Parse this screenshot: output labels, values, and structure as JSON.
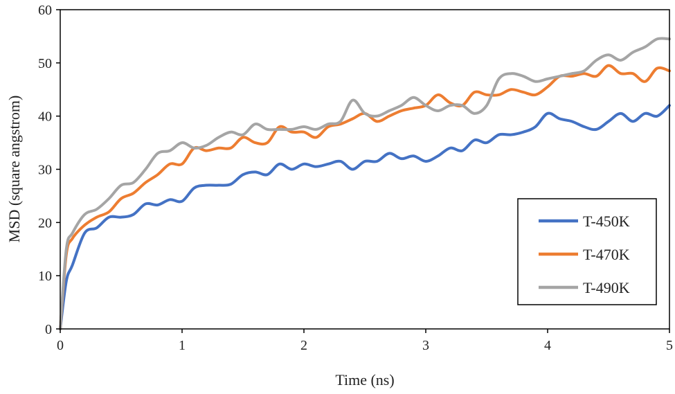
{
  "chart_data": {
    "type": "line",
    "title": "",
    "xlabel": "Time (ns)",
    "ylabel": "MSD (square angstrom)",
    "xlim": [
      0,
      5
    ],
    "ylim": [
      0,
      60
    ],
    "xticks": [
      0,
      1,
      2,
      3,
      4,
      5
    ],
    "yticks": [
      0,
      10,
      20,
      30,
      40,
      50,
      60
    ],
    "grid": false,
    "legend": "bottom-right",
    "x": [
      0,
      0.05,
      0.1,
      0.2,
      0.3,
      0.4,
      0.5,
      0.6,
      0.7,
      0.8,
      0.9,
      1.0,
      1.1,
      1.2,
      1.3,
      1.4,
      1.5,
      1.6,
      1.7,
      1.8,
      1.9,
      2.0,
      2.1,
      2.2,
      2.3,
      2.4,
      2.5,
      2.6,
      2.7,
      2.8,
      2.9,
      3.0,
      3.1,
      3.2,
      3.3,
      3.4,
      3.5,
      3.6,
      3.7,
      3.8,
      3.9,
      4.0,
      4.1,
      4.2,
      4.3,
      4.4,
      4.5,
      4.6,
      4.7,
      4.8,
      4.9,
      5.0
    ],
    "series": [
      {
        "name": "T-450K",
        "color": "#4472C4",
        "values": [
          0,
          9,
          12,
          18,
          19,
          21,
          21,
          21.5,
          23.5,
          23.3,
          24.3,
          24,
          26.5,
          27,
          27,
          27.2,
          29,
          29.5,
          29,
          31,
          30,
          31,
          30.5,
          31,
          31.5,
          30,
          31.5,
          31.5,
          33,
          32,
          32.5,
          31.5,
          32.5,
          34,
          33.5,
          35.5,
          35,
          36.5,
          36.5,
          37,
          38,
          40.5,
          39.5,
          39,
          38,
          37.5,
          39,
          40.5,
          39,
          40.5,
          40,
          42
        ]
      },
      {
        "name": "T-470K",
        "color": "#ED7D31",
        "values": [
          0,
          14,
          17,
          19.5,
          21,
          22,
          24.5,
          25.5,
          27.5,
          29,
          31,
          31,
          34,
          33.5,
          34,
          34,
          36,
          35,
          35,
          38,
          37,
          37,
          36,
          38,
          38.5,
          39.5,
          40.5,
          39,
          40,
          41,
          41.5,
          42,
          44,
          42.5,
          42,
          44.5,
          44,
          44,
          45,
          44.5,
          44,
          45.5,
          47.5,
          47.5,
          48,
          47.5,
          49.5,
          48,
          48,
          46.5,
          49,
          48.5
        ]
      },
      {
        "name": "T-490K",
        "color": "#A5A5A5",
        "values": [
          0,
          15,
          18,
          21.5,
          22.5,
          24.5,
          27,
          27.5,
          30,
          33,
          33.5,
          35,
          34,
          34.5,
          36,
          37,
          36.5,
          38.5,
          37.5,
          37.5,
          37.5,
          38,
          37.5,
          38.5,
          39,
          43,
          40.5,
          40,
          41,
          42,
          43.5,
          42,
          41,
          42,
          42,
          40.5,
          42,
          47,
          48,
          47.5,
          46.5,
          47,
          47.5,
          48,
          48.5,
          50.5,
          51.5,
          50.5,
          52,
          53,
          54.5,
          54.5
        ]
      }
    ]
  }
}
